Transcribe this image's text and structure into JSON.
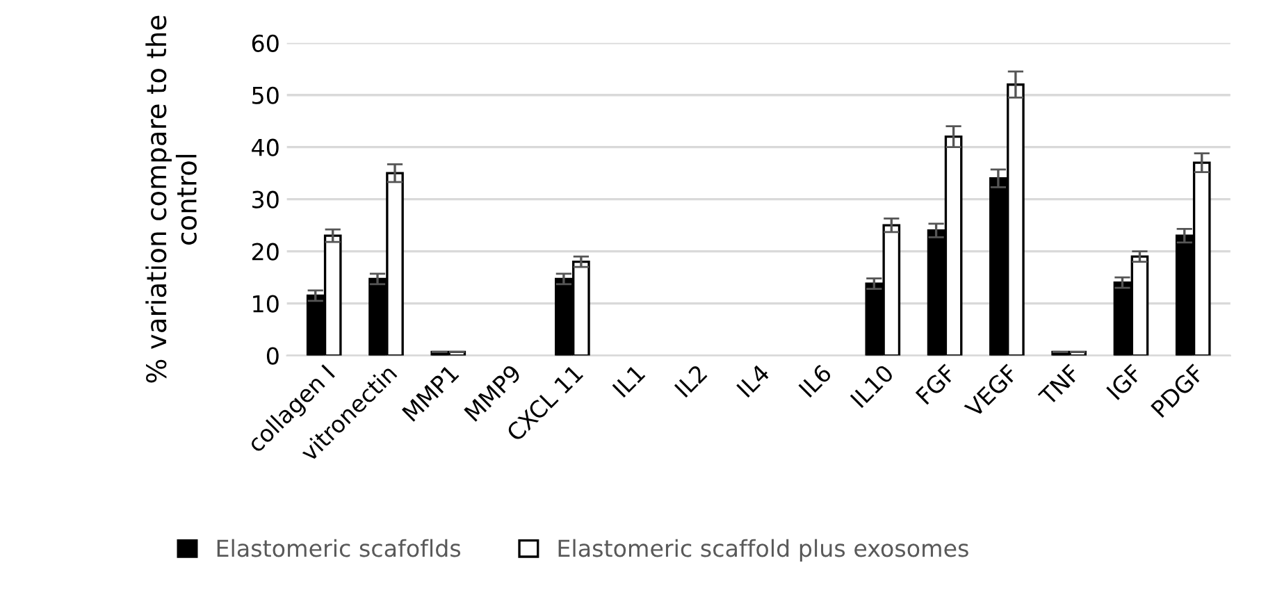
{
  "chart_data": {
    "type": "bar",
    "ylabel": "% variation compare to the control",
    "categories": [
      "collagen I",
      "vitronectin",
      "MMP1",
      "MMP9",
      "CXCL 11",
      "IL1",
      "IL2",
      "IL4",
      "IL6",
      "IL10",
      "FGF",
      "VEGF",
      "TNF",
      "IGF",
      "PDGF"
    ],
    "series": [
      {
        "name": "Elastomeric scafoflds",
        "color": "#000000",
        "values": [
          11.5,
          14.7,
          0.7,
          null,
          14.7,
          null,
          null,
          null,
          null,
          13.8,
          24,
          34,
          0.7,
          14,
          23
        ],
        "errors": [
          1,
          1,
          null,
          null,
          1,
          null,
          null,
          null,
          null,
          1,
          1.3,
          1.7,
          null,
          1,
          1.3
        ]
      },
      {
        "name": "Elastomeric scaffold plus exosomes",
        "color": "#ffffff",
        "values": [
          23,
          35,
          0.7,
          null,
          18,
          null,
          null,
          null,
          null,
          25,
          42,
          52,
          0.7,
          19,
          37
        ],
        "errors": [
          1.2,
          1.7,
          null,
          null,
          1,
          null,
          null,
          null,
          null,
          1.3,
          2,
          2.5,
          null,
          1,
          1.8
        ]
      }
    ],
    "ylim": [
      0,
      60
    ],
    "yticks": [
      0,
      10,
      20,
      30,
      40,
      50,
      60
    ],
    "grid": "y",
    "legend": "bottom"
  }
}
